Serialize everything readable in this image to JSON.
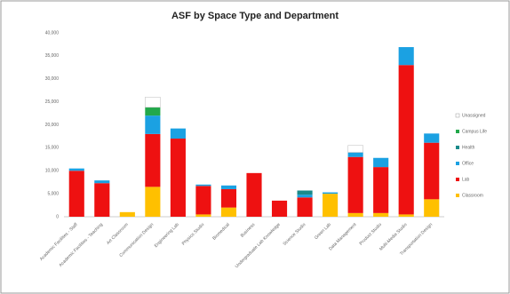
{
  "chart_data": {
    "type": "stacked_bar",
    "title": "ASF by Space Type and Department",
    "categories": [
      "Academic Facilities - Staff",
      "Academic Facilities - Teaching",
      "Art Classroom",
      "Communication Design",
      "Engineering Lab",
      "Physics Studio",
      "Biomedical",
      "Business",
      "Undergraduate Lab Knowledge",
      "Science Studio",
      "Green Lab",
      "Data Management",
      "Product Studio",
      "Multi-Media Studio",
      "Transportation Design"
    ],
    "series": [
      {
        "name": "Classroom",
        "color": "#ffc000",
        "values": [
          0,
          0,
          1000,
          6500,
          0,
          500,
          2000,
          0,
          0,
          0,
          5000,
          800,
          800,
          500,
          3800
        ]
      },
      {
        "name": "Lab",
        "color": "#ee1111",
        "values": [
          10000,
          7300,
          0,
          11500,
          17000,
          6200,
          4000,
          9500,
          3500,
          4200,
          0,
          12200,
          10000,
          32500,
          12300
        ]
      },
      {
        "name": "Office",
        "color": "#1ba1e2",
        "values": [
          500,
          600,
          0,
          4000,
          2200,
          300,
          800,
          0,
          0,
          600,
          300,
          1000,
          2000,
          3900,
          2000
        ]
      },
      {
        "name": "Health",
        "color": "#1a8a8a",
        "values": [
          0,
          0,
          0,
          0,
          0,
          0,
          0,
          0,
          0,
          900,
          0,
          0,
          0,
          0,
          0
        ]
      },
      {
        "name": "Campus Life",
        "color": "#22a84a",
        "values": [
          0,
          0,
          0,
          1800,
          0,
          0,
          0,
          0,
          0,
          0,
          0,
          0,
          0,
          0,
          0
        ]
      },
      {
        "name": "Unassigned",
        "color": "#ffffff",
        "values": [
          0,
          0,
          0,
          2200,
          0,
          0,
          0,
          0,
          0,
          0,
          0,
          1500,
          0,
          0,
          0
        ]
      }
    ],
    "ylim": [
      0,
      40000
    ],
    "yticks": [
      0,
      {
        "value": 5000,
        "label": "5,000"
      },
      {
        "value": 10000,
        "label": "10,000"
      },
      {
        "value": 15000,
        "label": "15,000"
      },
      {
        "value": 20000,
        "label": "20,000"
      },
      {
        "value": 25000,
        "label": "25,000"
      },
      {
        "value": 30000,
        "label": "30,000"
      },
      {
        "value": 35000,
        "label": "35,000"
      },
      {
        "value": 40000,
        "label": "40,000"
      }
    ],
    "grid": false,
    "legend": "right"
  }
}
